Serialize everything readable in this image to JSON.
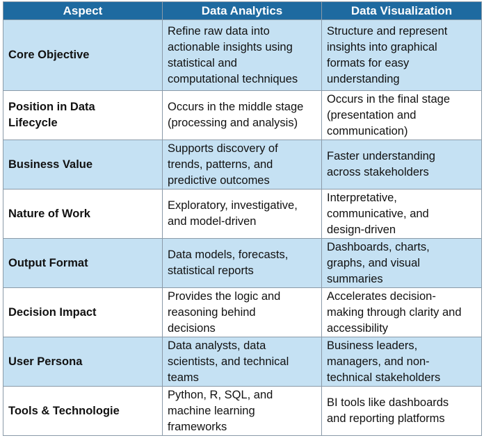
{
  "headers": [
    "Aspect",
    "Data Analytics",
    "Data Visualization"
  ],
  "rows": [
    {
      "aspect": "Core Objective",
      "analytics": "Refine raw data into\nactionable insights using\nstatistical and\ncomputational techniques",
      "visualization": "Structure and represent\ninsights into graphical\nformats for easy\nunderstanding"
    },
    {
      "aspect": "Position in Data\nLifecycle",
      "analytics": "Occurs in the middle stage\n(processing and analysis)",
      "visualization": "Occurs in the final stage\n(presentation and\ncommunication)"
    },
    {
      "aspect": "Business Value",
      "analytics": "Supports discovery of\ntrends, patterns, and\npredictive outcomes",
      "visualization": "Faster understanding\nacross stakeholders"
    },
    {
      "aspect": "Nature of Work",
      "analytics": "Exploratory, investigative,\nand model-driven",
      "visualization": "Interpretative,\ncommunicative, and\ndesign-driven"
    },
    {
      "aspect": "Output Format",
      "analytics": "Data models, forecasts,\nstatistical reports",
      "visualization": "Dashboards, charts,\ngraphs, and visual\nsummaries"
    },
    {
      "aspect": "Decision Impact",
      "analytics": "Provides the logic and\nreasoning behind\ndecisions",
      "visualization": "Accelerates decision-\nmaking through clarity and\naccessibility"
    },
    {
      "aspect": "User Persona",
      "analytics": "Data analysts, data\nscientists, and technical\nteams",
      "visualization": "Business leaders,\nmanagers, and non-\ntechnical stakeholders"
    },
    {
      "aspect": "Tools & Technologie",
      "analytics": "Python, R, SQL, and\nmachine learning\nframeworks",
      "visualization": "BI tools like dashboards\nand reporting platforms"
    }
  ],
  "colors": {
    "header_bg": "#1e6aa0",
    "header_text": "#ffffff",
    "shaded_row": "#c5e1f3",
    "plain_row": "#ffffff",
    "border": "#8a9aa8"
  }
}
